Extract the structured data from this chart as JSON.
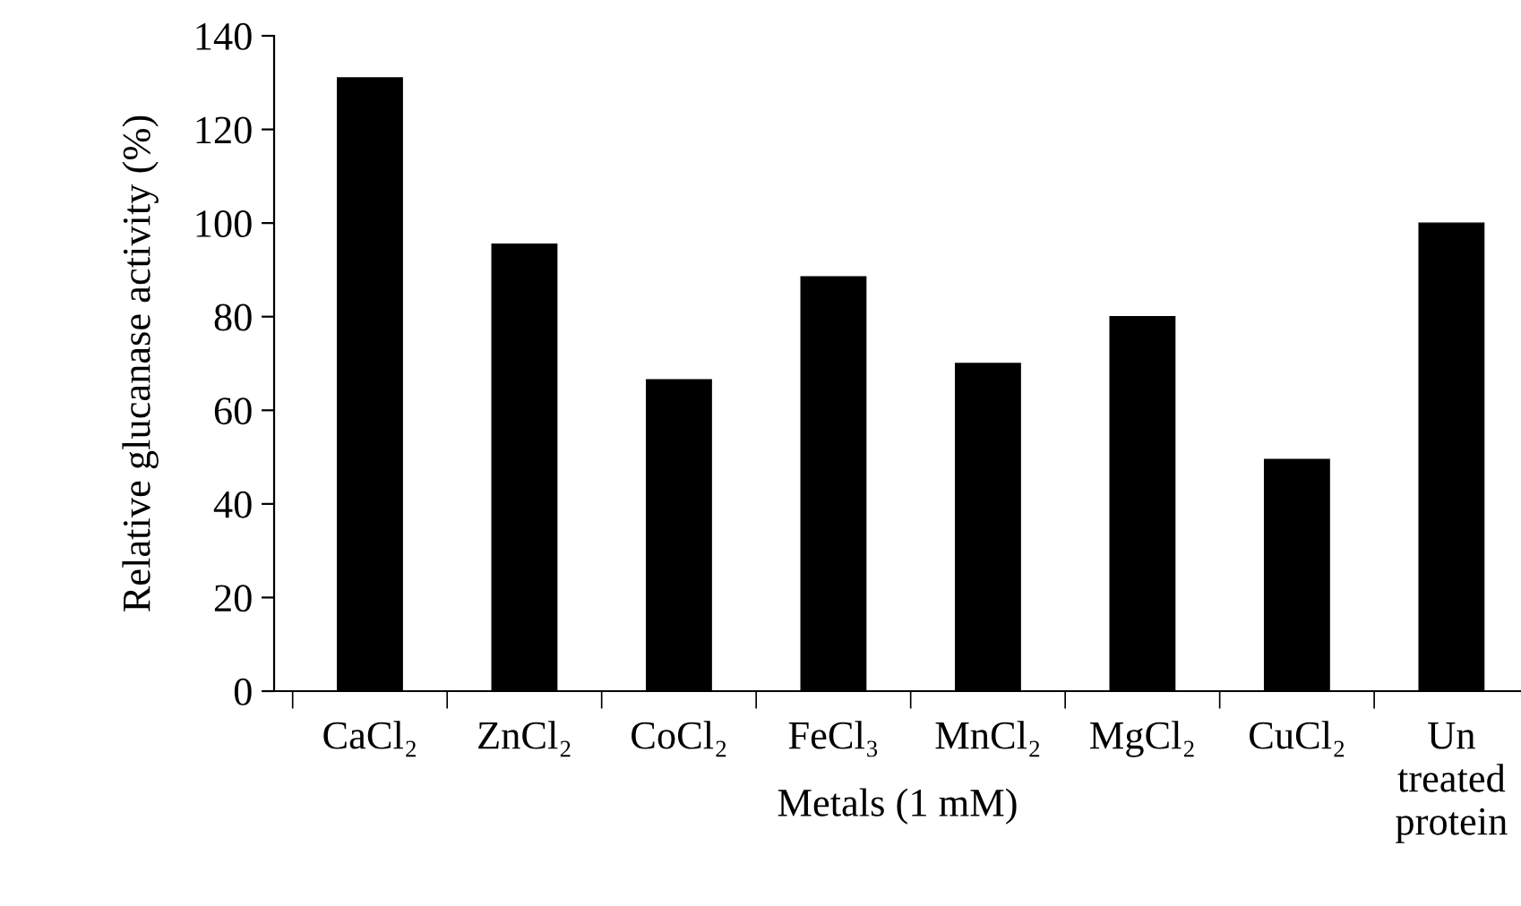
{
  "chart_data": {
    "type": "bar",
    "categories": [
      "CaCl₂",
      "ZnCl₂",
      "CoCl₂",
      "FeCl₃",
      "MnCl₂",
      "MgCl₂",
      "CuCl₂",
      "Un\ntreated\nprotein"
    ],
    "values": [
      131,
      95.5,
      66.5,
      88.5,
      70,
      80,
      49.5,
      100
    ],
    "color": "#000000",
    "xlabel": "Metals (1 mM)",
    "ylabel": "Relative glucanase activity (%)",
    "ylim": [
      0,
      140
    ],
    "yticks": [
      0,
      20,
      40,
      60,
      80,
      100,
      120,
      140
    ],
    "grid": false
  }
}
